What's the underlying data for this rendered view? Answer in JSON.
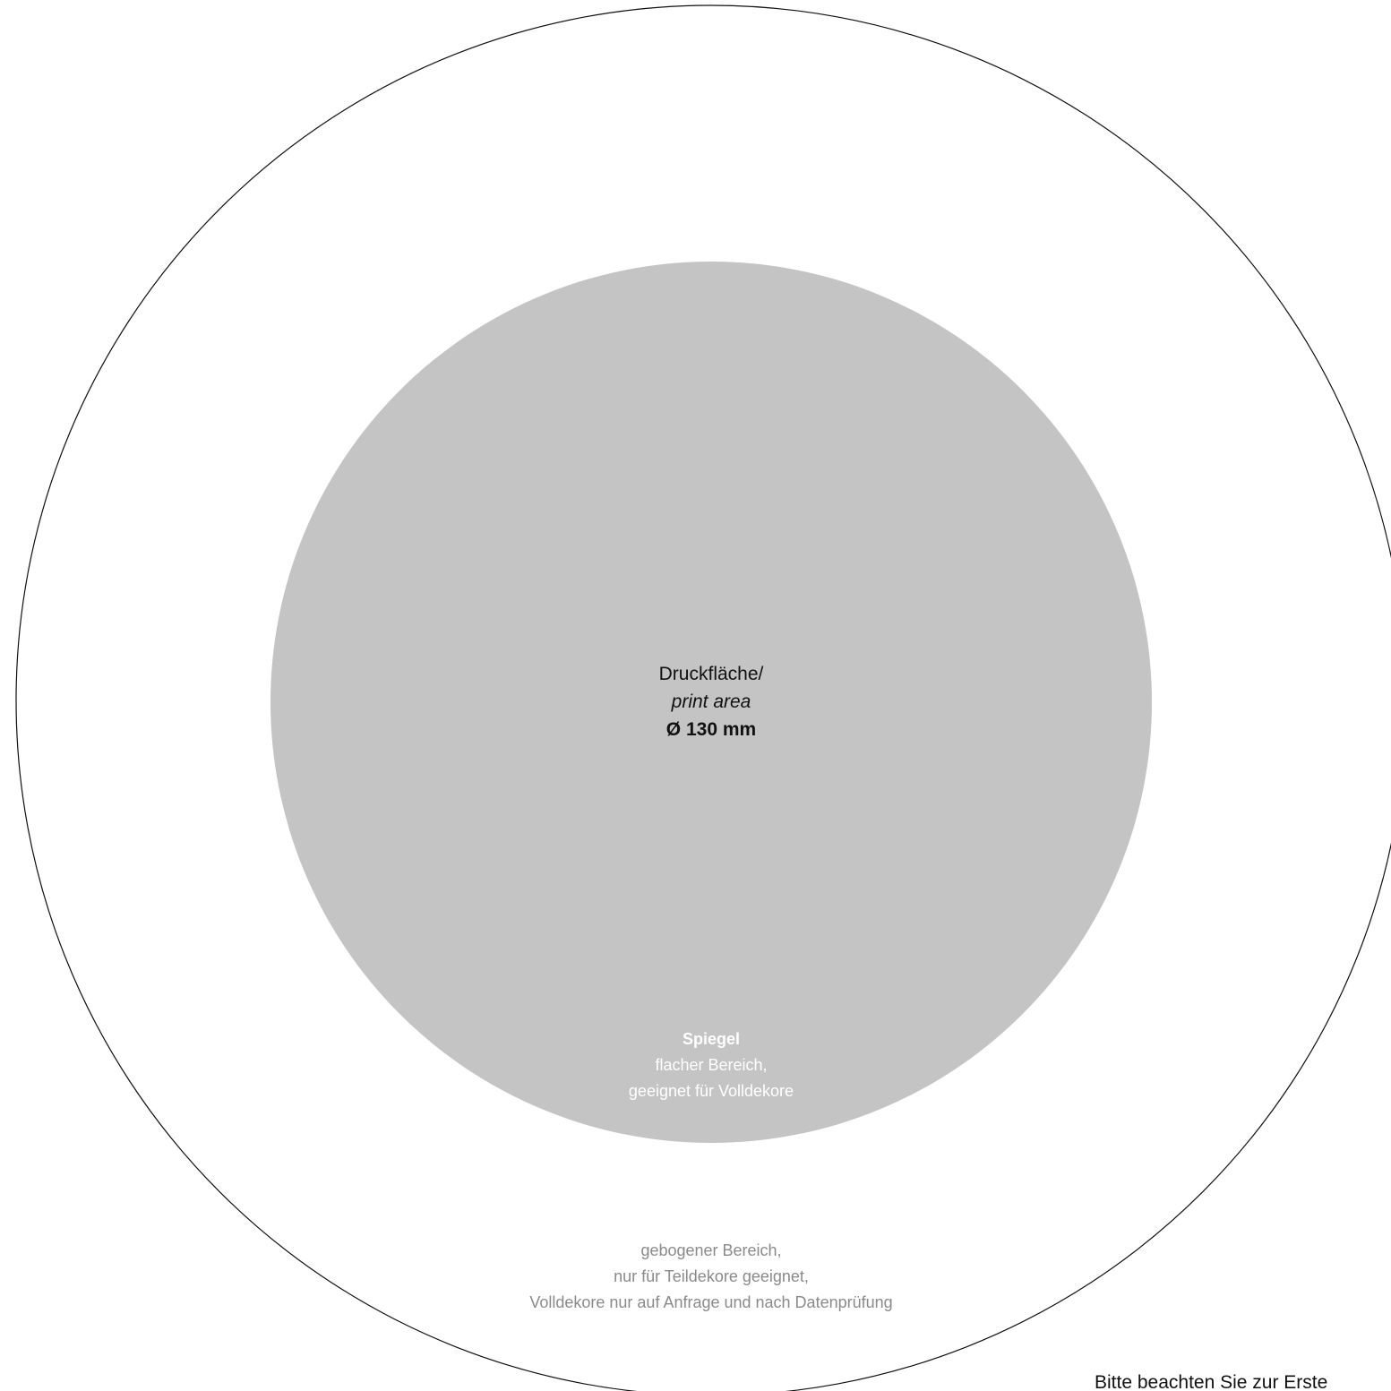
{
  "colors": {
    "outline": "#111111",
    "print_area_fill": "#c4c4c4",
    "mirror_text": "#ffffff",
    "rim_text": "#8a8a8a",
    "primary_text": "#111111"
  },
  "print_area": {
    "label_de": "Druckfläche/",
    "label_en": "print area",
    "diameter": "Ø 130 mm"
  },
  "mirror": {
    "title": "Spiegel",
    "line1": "flacher Bereich,",
    "line2": "geeignet für Volldekore"
  },
  "rim": {
    "line1": "gebogener Bereich,",
    "line2": "nur für Teildekore geeignet,",
    "line3": "Volldekore nur auf Anfrage und nach Datenprüfung"
  },
  "footer": {
    "note": "Bitte beachten Sie zur Erste"
  }
}
